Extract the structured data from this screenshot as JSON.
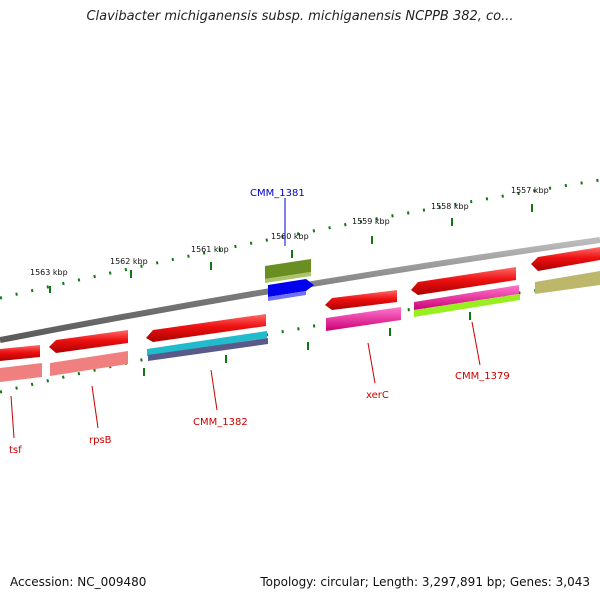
{
  "header": {
    "title": "Clavibacter michiganensis subsp. michiganensis NCPPB 382, co..."
  },
  "footer": {
    "accession": "Accession: NC_009480",
    "stats": "Topology: circular; Length: 3,297,891 bp; Genes: 3,043"
  },
  "ruler": {
    "ticks": [
      {
        "label": "1563 kbp"
      },
      {
        "label": "1562 kbp"
      },
      {
        "label": "1561 kbp"
      },
      {
        "label": "1560 kbp"
      },
      {
        "label": "1559 kbp"
      },
      {
        "label": "1558 kbp"
      },
      {
        "label": "1557 kbp"
      }
    ]
  },
  "genes": {
    "labels": [
      {
        "text": "CMM_1381",
        "color": "#0000cc"
      },
      {
        "text": "tsf",
        "color": "#cc0000"
      },
      {
        "text": "rpsB",
        "color": "#cc0000"
      },
      {
        "text": "CMM_1382",
        "color": "#cc0000"
      },
      {
        "text": "xerC",
        "color": "#cc0000"
      },
      {
        "text": "CMM_1379",
        "color": "#cc0000"
      }
    ]
  },
  "colors": {
    "gene_red": "#ee1111",
    "backbone": "#808080",
    "tick_green": "#117711",
    "cmm1381_top": "#6b8e23",
    "cmm1381_blue": "#0000ee",
    "magenta": "#ee1199",
    "cyan": "#22bbcc",
    "lime": "#99ee22",
    "khaki": "#bdb76b",
    "pink": "#f08080",
    "slate": "#5a5a8a"
  }
}
